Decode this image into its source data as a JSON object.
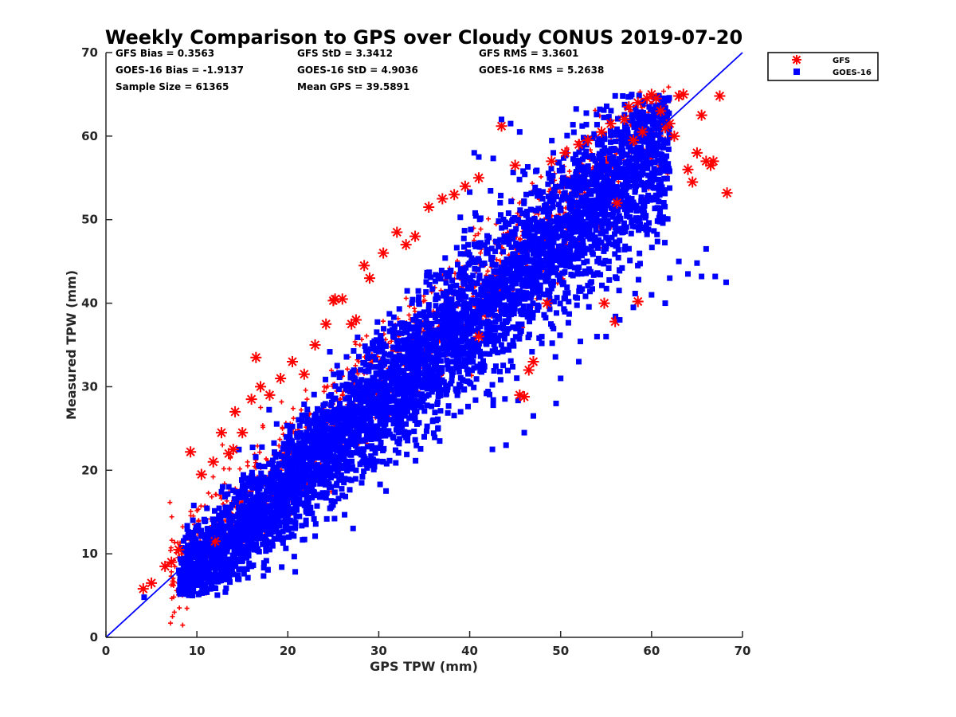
{
  "chart_data": {
    "type": "scatter",
    "title": "Weekly Comparison to GPS over Cloudy CONUS 2019-07-20",
    "xlabel": "GPS TPW (mm)",
    "ylabel": "Measured TPW (mm)",
    "xlim": [
      0,
      70
    ],
    "ylim": [
      0,
      70
    ],
    "xticks": [
      "0",
      "10",
      "20",
      "30",
      "40",
      "50",
      "60",
      "70"
    ],
    "yticks": [
      "0",
      "10",
      "20",
      "30",
      "40",
      "50",
      "60",
      "70"
    ],
    "grid": false,
    "legend_position": "outside top-right",
    "reference_line": {
      "name": "1:1 line",
      "x": [
        0,
        70
      ],
      "y": [
        0,
        70
      ],
      "color": "#0000ff"
    },
    "stats": [
      [
        "GFS Bias = 0.3563",
        "GFS StD = 3.3412",
        "GFS RMS = 3.3601"
      ],
      [
        "GOES-16 Bias = -1.9137",
        "GOES-16 StD = 4.9036",
        "GOES-16 RMS = 5.2638"
      ],
      [
        "Sample Size = 61365",
        "Mean GPS = 39.5891"
      ]
    ],
    "series": [
      {
        "name": "GFS",
        "marker": "asterisk",
        "color": "#ff0000",
        "x": [
          4.1,
          5.0,
          6.5,
          7.2,
          8.0,
          9.3,
          10.5,
          11.8,
          12.7,
          13.5,
          14.2,
          15.0,
          16.0,
          17.0,
          18.0,
          19.2,
          20.5,
          21.8,
          23.0,
          24.2,
          25.2,
          26.0,
          27.5,
          28.4,
          29.0,
          30.5,
          32.0,
          33.0,
          34.0,
          35.5,
          37.0,
          38.3,
          39.5,
          41.0,
          43.5,
          45.0,
          46.0,
          47.0,
          49.0,
          50.5,
          52.0,
          53.0,
          54.5,
          55.5,
          56.0,
          57.0,
          57.5,
          58.0,
          58.5,
          59.0,
          59.5,
          60.0,
          60.5,
          61.0,
          61.5,
          62.0,
          62.5,
          63.0,
          63.5,
          64.0,
          64.5,
          65.0,
          65.5,
          66.0,
          66.5,
          66.8,
          67.5,
          68.3,
          12.0,
          14.0,
          16.5,
          25.0,
          27.0,
          41.0,
          45.5,
          46.5,
          48.5,
          54.8,
          56.2,
          58.5
        ],
        "y": [
          5.8,
          6.5,
          8.5,
          9.0,
          10.5,
          22.2,
          19.5,
          21.0,
          24.5,
          22.0,
          27.0,
          24.5,
          28.5,
          30.0,
          29.0,
          31.0,
          33.0,
          31.5,
          35.0,
          37.5,
          40.5,
          40.5,
          38.0,
          44.5,
          43.0,
          46.0,
          48.5,
          47.0,
          48.0,
          51.5,
          52.5,
          53.0,
          54.0,
          55.0,
          61.2,
          56.5,
          28.8,
          33.0,
          57.0,
          58.0,
          59.0,
          59.5,
          60.5,
          61.5,
          37.8,
          62.0,
          63.5,
          59.5,
          64.0,
          60.5,
          64.5,
          65.0,
          64.5,
          63.0,
          61.0,
          61.5,
          60.0,
          64.8,
          65.0,
          56.0,
          54.5,
          58.0,
          62.5,
          57.0,
          56.5,
          57.0,
          64.8,
          53.2,
          11.5,
          22.5,
          33.5,
          40.3,
          37.5,
          36.0,
          29.0,
          32.0,
          40.0,
          40.0,
          52.0,
          40.2
        ]
      },
      {
        "name": "GOES-16",
        "marker": "square",
        "color": "#0000ff",
        "outliers_x": [
          4.2,
          9.5,
          11.5,
          14.5,
          16.0,
          18.0,
          19.0,
          22.0,
          26.0,
          27.5,
          30.5,
          35.0,
          36.0,
          39.0,
          39.0,
          42.5,
          44.0,
          46.0,
          47.0,
          49.5,
          50.0,
          52.0,
          54.0,
          55.0,
          56.5,
          58.0,
          60.0,
          61.5,
          62.0,
          63.0,
          64.0,
          65.0,
          65.5,
          66.0,
          67.0,
          68.2,
          43.5,
          44.5,
          45.5,
          40.5,
          41.0
        ],
        "outliers_y": [
          4.8,
          5.0,
          5.8,
          7.0,
          8.5,
          10.5,
          12.5,
          14.0,
          17.0,
          20.0,
          21.0,
          24.0,
          26.0,
          27.0,
          30.0,
          22.5,
          23.0,
          24.5,
          26.5,
          28.0,
          31.0,
          33.0,
          36.0,
          36.0,
          38.0,
          39.5,
          41.0,
          40.0,
          43.0,
          45.0,
          43.5,
          44.8,
          43.2,
          46.5,
          43.2,
          42.5,
          62.0,
          61.5,
          60.5,
          58.0,
          57.5
        ],
        "cloud_point_count": 61365
      }
    ]
  }
}
